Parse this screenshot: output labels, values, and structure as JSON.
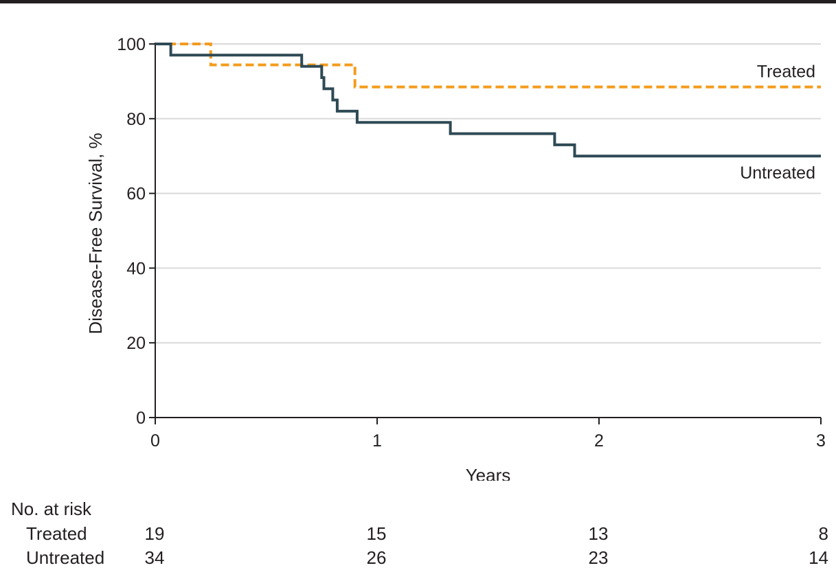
{
  "colors": {
    "treated": "#f39c1d",
    "untreated": "#2e4a55",
    "grid": "#d9d9d9",
    "axis": "#231f20"
  },
  "chart_data": {
    "type": "line",
    "subtype": "kaplan-meier-step",
    "xlabel": "Years",
    "ylabel": "Disease-Free Survival, %",
    "xlim": [
      0,
      3
    ],
    "ylim": [
      0,
      100
    ],
    "x_ticks": [
      "0",
      "1",
      "2",
      "3"
    ],
    "y_ticks": [
      "0",
      "20",
      "40",
      "60",
      "80",
      "100"
    ],
    "grid": "horizontal",
    "series": [
      {
        "name": "Treated",
        "line_style": "dashed",
        "color": "#f39c1d",
        "points": [
          [
            0,
            100
          ],
          [
            0.25,
            100
          ],
          [
            0.25,
            94.4
          ],
          [
            0.9,
            94.4
          ],
          [
            0.9,
            88.5
          ],
          [
            3,
            88.5
          ]
        ]
      },
      {
        "name": "Untreated",
        "line_style": "solid",
        "color": "#2e4a55",
        "points": [
          [
            0,
            100
          ],
          [
            0.07,
            100
          ],
          [
            0.07,
            97
          ],
          [
            0.66,
            97
          ],
          [
            0.66,
            94
          ],
          [
            0.75,
            94
          ],
          [
            0.75,
            91
          ],
          [
            0.76,
            91
          ],
          [
            0.76,
            88
          ],
          [
            0.8,
            88
          ],
          [
            0.8,
            85
          ],
          [
            0.82,
            85
          ],
          [
            0.82,
            82
          ],
          [
            0.91,
            82
          ],
          [
            0.91,
            79
          ],
          [
            1.33,
            79
          ],
          [
            1.33,
            76
          ],
          [
            1.8,
            76
          ],
          [
            1.8,
            73
          ],
          [
            1.89,
            73
          ],
          [
            1.89,
            70
          ],
          [
            3,
            70
          ]
        ]
      }
    ]
  },
  "risk_table": {
    "title": "No. at risk",
    "columns": [
      "0",
      "1",
      "2",
      "3"
    ],
    "rows": [
      {
        "label": "Treated",
        "values": [
          "19",
          "15",
          "13",
          "8"
        ]
      },
      {
        "label": "Untreated",
        "values": [
          "34",
          "26",
          "23",
          "14"
        ]
      }
    ]
  }
}
